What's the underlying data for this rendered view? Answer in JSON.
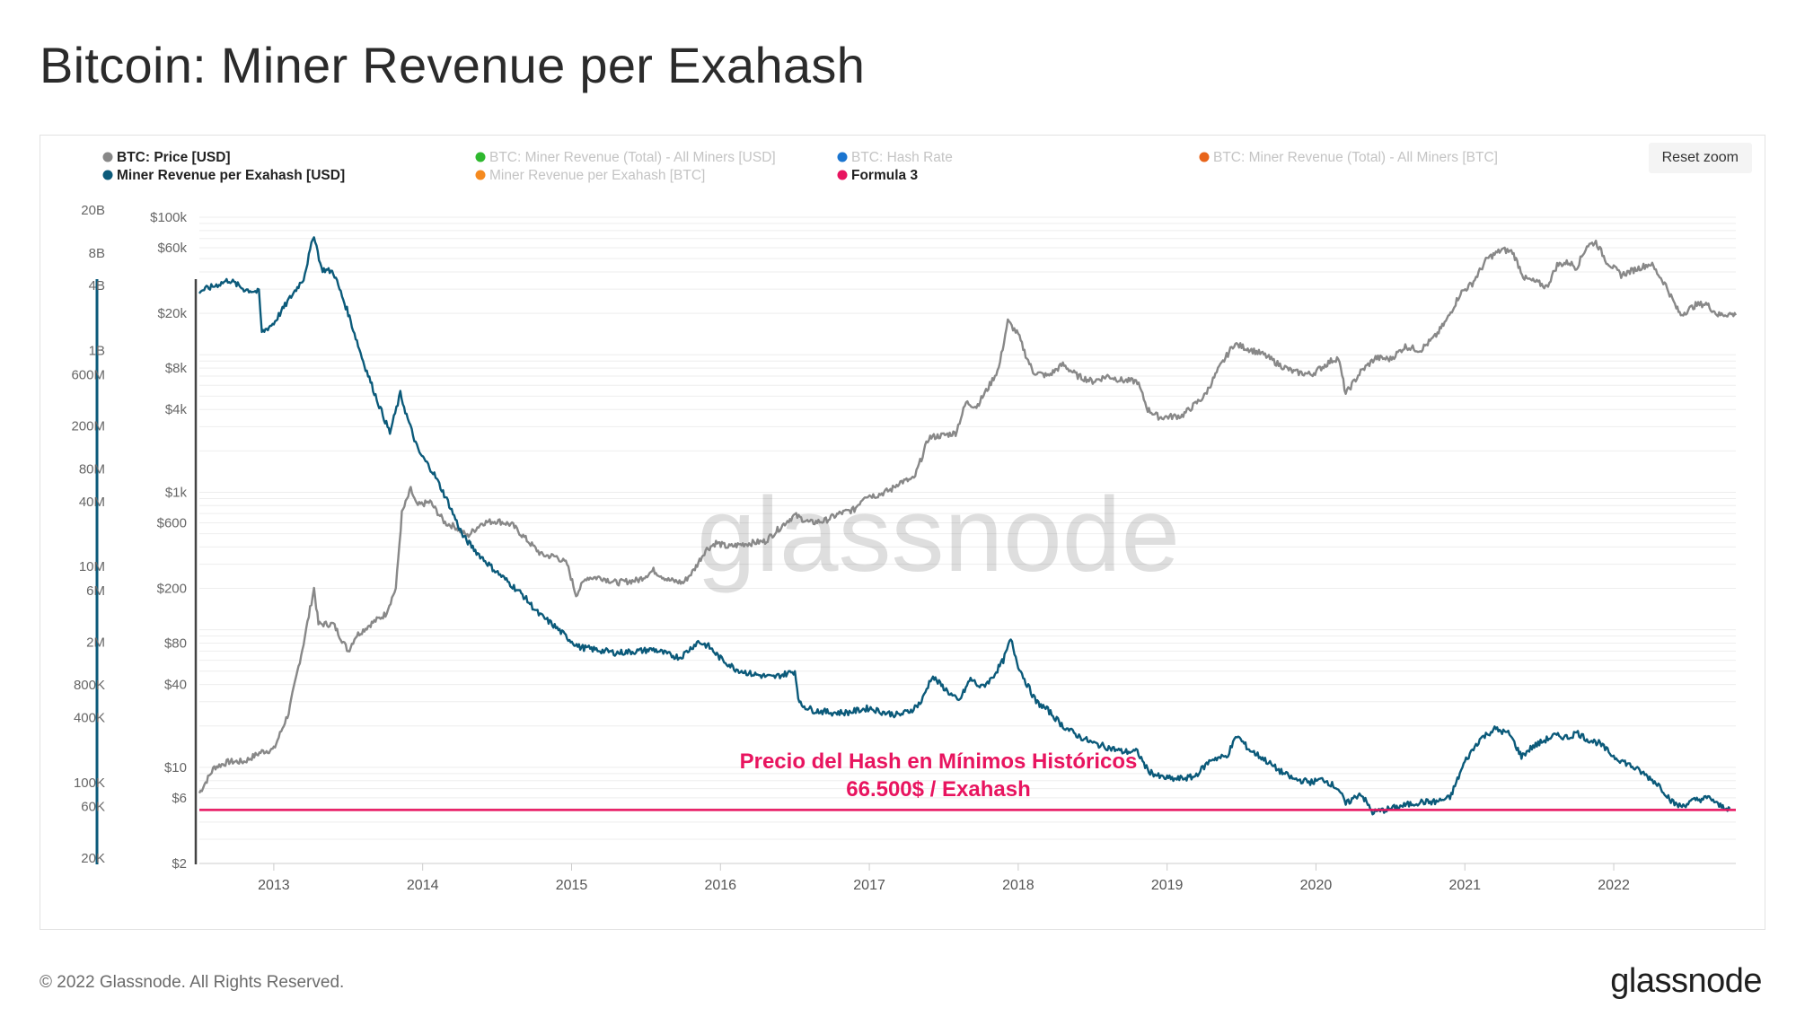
{
  "page": {
    "title": "Bitcoin: Miner Revenue per Exahash",
    "footer_copyright": "© 2022 Glassnode. All Rights Reserved.",
    "footer_logo": "glassnode",
    "watermark": "glassnode",
    "reset_zoom_label": "Reset zoom"
  },
  "chart_data": {
    "type": "line",
    "title": "Bitcoin: Miner Revenue per Exahash",
    "x_axis": {
      "range": [
        2012.5,
        2022.82
      ],
      "ticks": [
        {
          "value": 2013,
          "label": "2013"
        },
        {
          "value": 2014,
          "label": "2014"
        },
        {
          "value": 2015,
          "label": "2015"
        },
        {
          "value": 2016,
          "label": "2016"
        },
        {
          "value": 2017,
          "label": "2017"
        },
        {
          "value": 2018,
          "label": "2018"
        },
        {
          "value": 2019,
          "label": "2019"
        },
        {
          "value": 2020,
          "label": "2020"
        },
        {
          "value": 2021,
          "label": "2021"
        },
        {
          "value": 2022,
          "label": "2022"
        }
      ]
    },
    "y_axis_price": {
      "scale": "log",
      "range": [
        2,
        130000
      ],
      "ticks": [
        {
          "value": 100000,
          "label": "$100k"
        },
        {
          "value": 60000,
          "label": "$60k"
        },
        {
          "value": 20000,
          "label": "$20k"
        },
        {
          "value": 8000,
          "label": "$8k"
        },
        {
          "value": 4000,
          "label": "$4k"
        },
        {
          "value": 1000,
          "label": "$1k"
        },
        {
          "value": 600,
          "label": "$600"
        },
        {
          "value": 200,
          "label": "$200"
        },
        {
          "value": 80,
          "label": "$80"
        },
        {
          "value": 40,
          "label": "$40"
        },
        {
          "value": 10,
          "label": "$10"
        },
        {
          "value": 6,
          "label": "$6"
        },
        {
          "value": 2,
          "label": "$2"
        }
      ]
    },
    "y_axis_revenue": {
      "scale": "log",
      "range": [
        20000,
        30000000000
      ],
      "color": "#0b5a7a",
      "ticks": [
        {
          "value": 20000000000,
          "label": "20B"
        },
        {
          "value": 8000000000,
          "label": "8B"
        },
        {
          "value": 4000000000,
          "label": "4B"
        },
        {
          "value": 1000000000,
          "label": "1B"
        },
        {
          "value": 600000000,
          "label": "600M"
        },
        {
          "value": 200000000,
          "label": "200M"
        },
        {
          "value": 80000000,
          "label": "80M"
        },
        {
          "value": 40000000,
          "label": "40M"
        },
        {
          "value": 10000000,
          "label": "10M"
        },
        {
          "value": 6000000,
          "label": "6M"
        },
        {
          "value": 2000000,
          "label": "2M"
        },
        {
          "value": 800000,
          "label": "800K"
        },
        {
          "value": 400000,
          "label": "400K"
        },
        {
          "value": 100000,
          "label": "100K"
        },
        {
          "value": 60000,
          "label": "60K"
        },
        {
          "value": 20000,
          "label": "20K"
        }
      ]
    },
    "legend": [
      {
        "label": "BTC: Price [USD]",
        "color": "#888888",
        "active": true
      },
      {
        "label": "Miner Revenue per Exahash [USD]",
        "color": "#0b5a7a",
        "active": true
      },
      {
        "label": "BTC: Miner Revenue (Total) - All Miners [USD]",
        "color": "#2eb82e",
        "active": false
      },
      {
        "label": "Miner Revenue per Exahash [BTC]",
        "color": "#f58a1f",
        "active": false
      },
      {
        "label": "BTC: Hash Rate",
        "color": "#1b75d0",
        "active": false
      },
      {
        "label": "Formula 3",
        "color": "#e8145f",
        "active": true
      },
      {
        "label": "BTC: Miner Revenue (Total) - All Miners [BTC]",
        "color": "#e8641a",
        "active": false
      }
    ],
    "series": [
      {
        "name": "BTC: Price [USD]",
        "color": "#888888",
        "axis": "price",
        "points": [
          [
            2012.5,
            6.5
          ],
          [
            2012.6,
            10
          ],
          [
            2012.7,
            11
          ],
          [
            2012.8,
            11
          ],
          [
            2012.92,
            13
          ],
          [
            2013.0,
            13.5
          ],
          [
            2013.1,
            25
          ],
          [
            2013.2,
            80
          ],
          [
            2013.27,
            200
          ],
          [
            2013.3,
            110
          ],
          [
            2013.4,
            110
          ],
          [
            2013.5,
            70
          ],
          [
            2013.55,
            90
          ],
          [
            2013.65,
            110
          ],
          [
            2013.75,
            130
          ],
          [
            2013.82,
            200
          ],
          [
            2013.86,
            700
          ],
          [
            2013.92,
            1050
          ],
          [
            2013.96,
            800
          ],
          [
            2014.05,
            850
          ],
          [
            2014.15,
            600
          ],
          [
            2014.22,
            560
          ],
          [
            2014.3,
            480
          ],
          [
            2014.4,
            600
          ],
          [
            2014.5,
            620
          ],
          [
            2014.6,
            580
          ],
          [
            2014.7,
            450
          ],
          [
            2014.8,
            350
          ],
          [
            2014.9,
            340
          ],
          [
            2014.97,
            300
          ],
          [
            2015.03,
            180
          ],
          [
            2015.1,
            240
          ],
          [
            2015.2,
            240
          ],
          [
            2015.3,
            220
          ],
          [
            2015.45,
            230
          ],
          [
            2015.55,
            270
          ],
          [
            2015.65,
            230
          ],
          [
            2015.75,
            220
          ],
          [
            2015.82,
            270
          ],
          [
            2015.9,
            380
          ],
          [
            2015.97,
            430
          ],
          [
            2016.05,
            400
          ],
          [
            2016.15,
            420
          ],
          [
            2016.3,
            440
          ],
          [
            2016.45,
            620
          ],
          [
            2016.5,
            680
          ],
          [
            2016.6,
            600
          ],
          [
            2016.7,
            620
          ],
          [
            2016.8,
            700
          ],
          [
            2016.9,
            750
          ],
          [
            2016.97,
            950
          ],
          [
            2017.05,
            950
          ],
          [
            2017.15,
            1050
          ],
          [
            2017.2,
            1180
          ],
          [
            2017.3,
            1250
          ],
          [
            2017.4,
            2500
          ],
          [
            2017.5,
            2600
          ],
          [
            2017.58,
            2700
          ],
          [
            2017.65,
            4500
          ],
          [
            2017.72,
            4200
          ],
          [
            2017.8,
            5800
          ],
          [
            2017.87,
            8000
          ],
          [
            2017.93,
            17500
          ],
          [
            2018.0,
            14000
          ],
          [
            2018.05,
            10000
          ],
          [
            2018.1,
            7500
          ],
          [
            2018.2,
            7000
          ],
          [
            2018.3,
            8500
          ],
          [
            2018.4,
            7000
          ],
          [
            2018.5,
            6400
          ],
          [
            2018.6,
            7000
          ],
          [
            2018.7,
            6500
          ],
          [
            2018.8,
            6400
          ],
          [
            2018.87,
            4000
          ],
          [
            2018.95,
            3500
          ],
          [
            2019.1,
            3600
          ],
          [
            2019.25,
            5000
          ],
          [
            2019.35,
            8000
          ],
          [
            2019.45,
            12000
          ],
          [
            2019.55,
            11000
          ],
          [
            2019.65,
            10000
          ],
          [
            2019.75,
            8500
          ],
          [
            2019.85,
            7500
          ],
          [
            2019.97,
            7200
          ],
          [
            2020.1,
            9000
          ],
          [
            2020.15,
            9500
          ],
          [
            2020.2,
            5200
          ],
          [
            2020.3,
            7500
          ],
          [
            2020.4,
            9500
          ],
          [
            2020.5,
            9300
          ],
          [
            2020.6,
            11500
          ],
          [
            2020.7,
            10800
          ],
          [
            2020.8,
            13500
          ],
          [
            2020.88,
            18000
          ],
          [
            2020.97,
            28000
          ],
          [
            2021.05,
            33000
          ],
          [
            2021.15,
            50000
          ],
          [
            2021.25,
            58000
          ],
          [
            2021.32,
            56000
          ],
          [
            2021.4,
            36000
          ],
          [
            2021.5,
            33000
          ],
          [
            2021.55,
            31000
          ],
          [
            2021.62,
            45000
          ],
          [
            2021.7,
            47000
          ],
          [
            2021.75,
            43000
          ],
          [
            2021.82,
            62000
          ],
          [
            2021.88,
            66000
          ],
          [
            2021.95,
            48000
          ],
          [
            2022.05,
            38000
          ],
          [
            2022.15,
            42000
          ],
          [
            2022.25,
            46000
          ],
          [
            2022.35,
            32000
          ],
          [
            2022.42,
            22000
          ],
          [
            2022.45,
            19500
          ],
          [
            2022.55,
            23000
          ],
          [
            2022.62,
            23500
          ],
          [
            2022.7,
            19500
          ],
          [
            2022.78,
            19800
          ],
          [
            2022.82,
            19400
          ]
        ]
      },
      {
        "name": "Miner Revenue per Exahash [USD]",
        "color": "#0b5a7a",
        "axis": "price",
        "points": [
          [
            2012.5,
            29000
          ],
          [
            2012.58,
            31000
          ],
          [
            2012.7,
            35000
          ],
          [
            2012.8,
            30000
          ],
          [
            2012.9,
            28500
          ],
          [
            2012.92,
            14500
          ],
          [
            2013.0,
            17000
          ],
          [
            2013.1,
            25000
          ],
          [
            2013.2,
            36000
          ],
          [
            2013.27,
            75000
          ],
          [
            2013.32,
            42000
          ],
          [
            2013.4,
            40000
          ],
          [
            2013.5,
            20000
          ],
          [
            2013.6,
            9000
          ],
          [
            2013.7,
            4500
          ],
          [
            2013.78,
            2700
          ],
          [
            2013.85,
            5200
          ],
          [
            2013.9,
            3400
          ],
          [
            2013.97,
            2000
          ],
          [
            2014.07,
            1400
          ],
          [
            2014.17,
            850
          ],
          [
            2014.27,
            480
          ],
          [
            2014.37,
            360
          ],
          [
            2014.47,
            280
          ],
          [
            2014.58,
            220
          ],
          [
            2014.67,
            180
          ],
          [
            2014.78,
            130
          ],
          [
            2014.87,
            110
          ],
          [
            2014.97,
            88
          ],
          [
            2015.05,
            75
          ],
          [
            2015.15,
            72
          ],
          [
            2015.3,
            68
          ],
          [
            2015.45,
            70
          ],
          [
            2015.55,
            72
          ],
          [
            2015.65,
            66
          ],
          [
            2015.73,
            63
          ],
          [
            2015.85,
            82
          ],
          [
            2015.92,
            76
          ],
          [
            2016.0,
            62
          ],
          [
            2016.1,
            52
          ],
          [
            2016.2,
            48
          ],
          [
            2016.35,
            45
          ],
          [
            2016.5,
            50
          ],
          [
            2016.53,
            29
          ],
          [
            2016.62,
            26
          ],
          [
            2016.75,
            25
          ],
          [
            2016.85,
            25
          ],
          [
            2017.0,
            27
          ],
          [
            2017.1,
            25
          ],
          [
            2017.2,
            24
          ],
          [
            2017.28,
            26
          ],
          [
            2017.35,
            30
          ],
          [
            2017.42,
            46
          ],
          [
            2017.5,
            38
          ],
          [
            2017.6,
            30
          ],
          [
            2017.68,
            44
          ],
          [
            2017.75,
            38
          ],
          [
            2017.82,
            44
          ],
          [
            2017.9,
            60
          ],
          [
            2017.95,
            85
          ],
          [
            2018.0,
            55
          ],
          [
            2018.05,
            42
          ],
          [
            2018.12,
            30
          ],
          [
            2018.2,
            26
          ],
          [
            2018.3,
            20
          ],
          [
            2018.4,
            17
          ],
          [
            2018.5,
            15
          ],
          [
            2018.6,
            14
          ],
          [
            2018.7,
            13
          ],
          [
            2018.8,
            13
          ],
          [
            2018.87,
            9.5
          ],
          [
            2018.95,
            8.5
          ],
          [
            2019.05,
            8.2
          ],
          [
            2019.18,
            8.5
          ],
          [
            2019.3,
            11.5
          ],
          [
            2019.4,
            12
          ],
          [
            2019.47,
            17
          ],
          [
            2019.55,
            13.5
          ],
          [
            2019.65,
            11.5
          ],
          [
            2019.75,
            9.5
          ],
          [
            2019.85,
            8.2
          ],
          [
            2019.97,
            7.8
          ],
          [
            2020.05,
            8.2
          ],
          [
            2020.15,
            7
          ],
          [
            2020.2,
            5.4
          ],
          [
            2020.3,
            6.5
          ],
          [
            2020.38,
            4.7
          ],
          [
            2020.5,
            5
          ],
          [
            2020.6,
            5.3
          ],
          [
            2020.7,
            5.6
          ],
          [
            2020.8,
            5.6
          ],
          [
            2020.9,
            6
          ],
          [
            2021.0,
            11
          ],
          [
            2021.1,
            16
          ],
          [
            2021.2,
            19
          ],
          [
            2021.3,
            17.5
          ],
          [
            2021.38,
            12
          ],
          [
            2021.45,
            14
          ],
          [
            2021.55,
            16
          ],
          [
            2021.6,
            17
          ],
          [
            2021.7,
            16.5
          ],
          [
            2021.75,
            18
          ],
          [
            2021.82,
            16
          ],
          [
            2021.9,
            15
          ],
          [
            2022.0,
            12
          ],
          [
            2022.1,
            10.5
          ],
          [
            2022.2,
            9
          ],
          [
            2022.3,
            7.5
          ],
          [
            2022.4,
            5.5
          ],
          [
            2022.45,
            5.2
          ],
          [
            2022.55,
            5.8
          ],
          [
            2022.65,
            6
          ],
          [
            2022.7,
            5.3
          ],
          [
            2022.78,
            5
          ]
        ]
      },
      {
        "name": "Formula 3",
        "color": "#e8145f",
        "axis": "price",
        "points": [
          [
            2012.5,
            4.9
          ],
          [
            2022.82,
            4.9
          ]
        ]
      }
    ],
    "annotations": [
      {
        "text": "Precio del Hash en Mínimos Históricos"
      },
      {
        "text": "66.500$ / Exahash"
      }
    ]
  }
}
